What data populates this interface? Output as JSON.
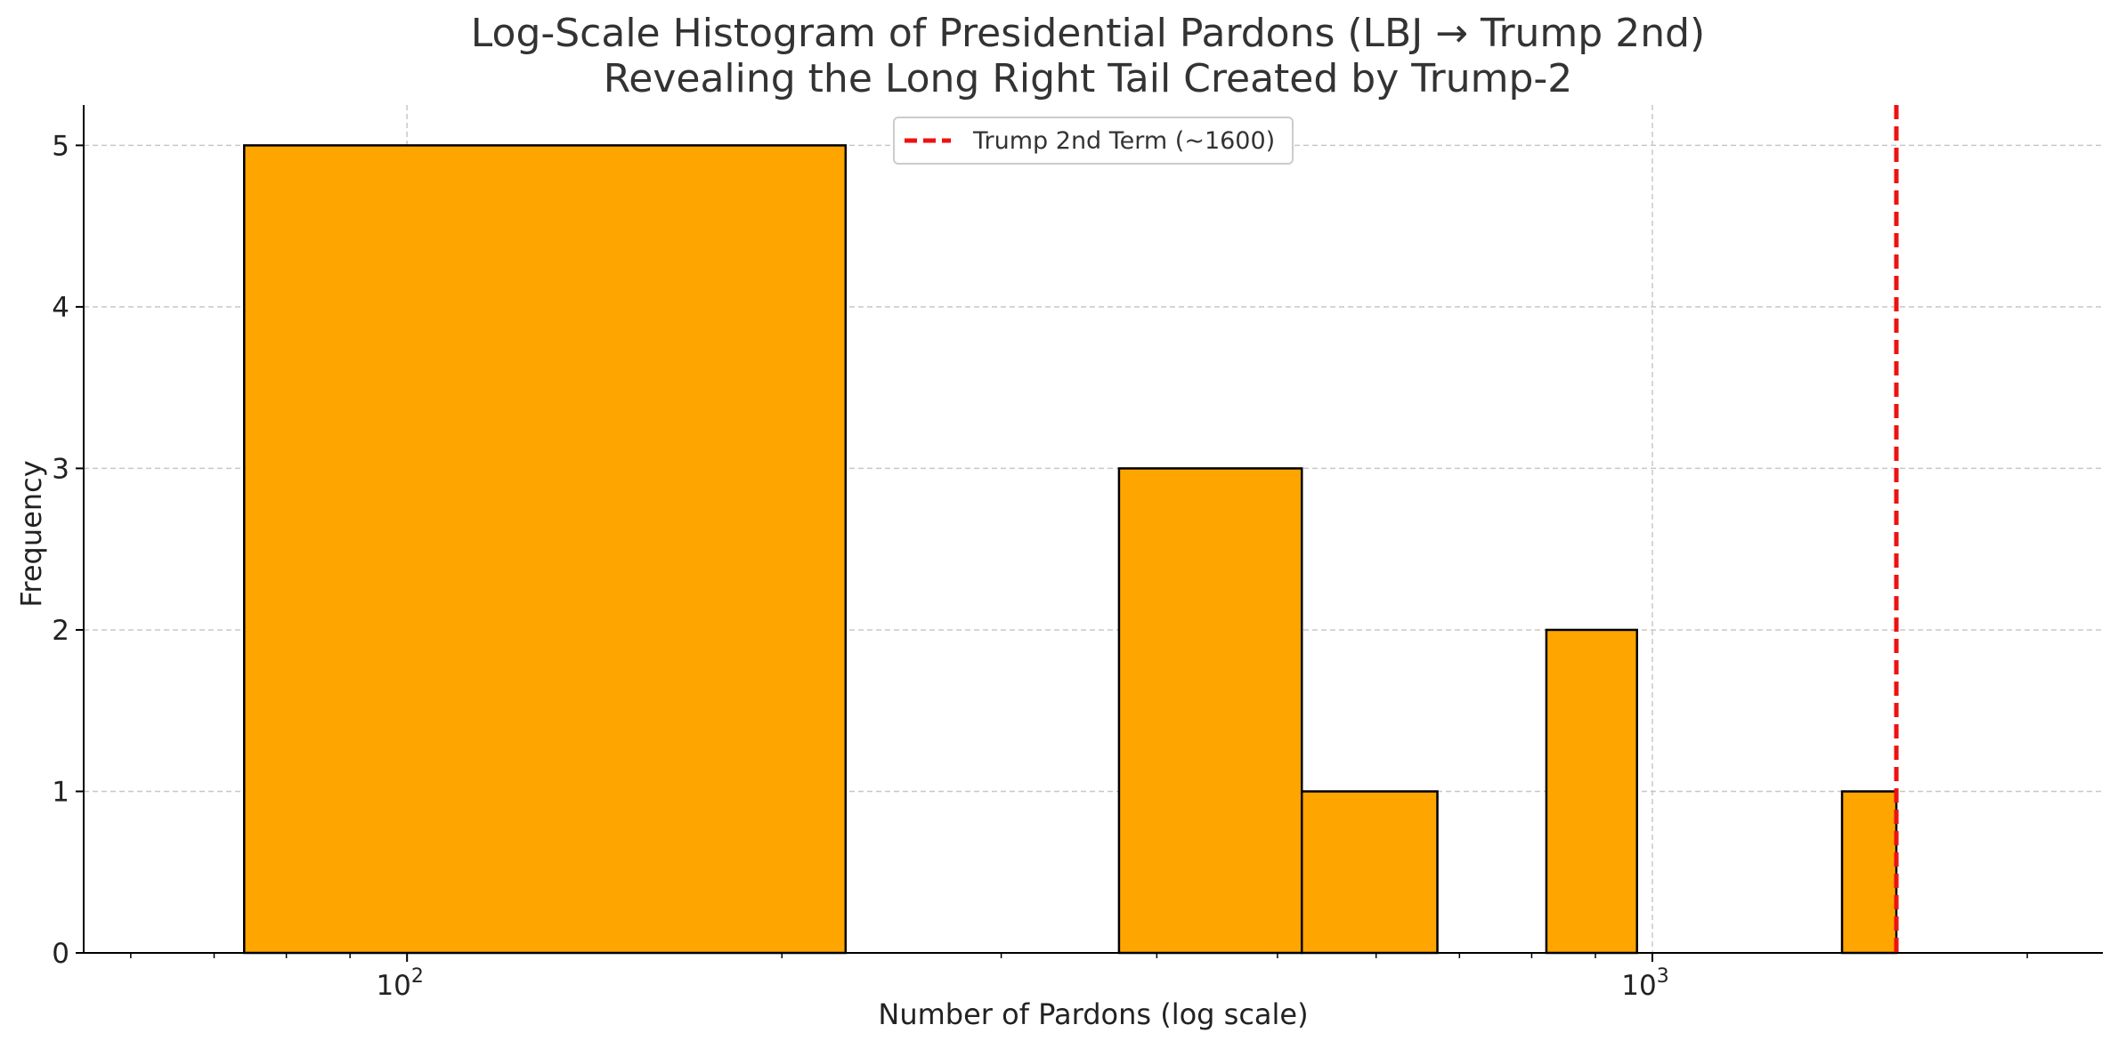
{
  "chart_data": {
    "type": "bar",
    "title_line1": "Log-Scale Histogram of Presidential Pardons (LBJ → Trump 2nd)",
    "title_line2": "Revealing the Long Right Tail Created by Trump-2",
    "xlabel": "Number of Pardons (log scale)",
    "ylabel": "Frequency",
    "x_scale": "log",
    "xlim": [
      55,
      2300
    ],
    "ylim": [
      0,
      5.25
    ],
    "yticks": [
      0,
      1,
      2,
      3,
      4,
      5
    ],
    "xticks": [
      {
        "value": 100,
        "base": "10",
        "exp": "2"
      },
      {
        "value": 1000,
        "base": "10",
        "exp": "3"
      }
    ],
    "bins": [
      {
        "start": 74,
        "end": 225,
        "count": 5
      },
      {
        "start": 373,
        "end": 523,
        "count": 3
      },
      {
        "start": 523,
        "end": 672,
        "count": 1
      },
      {
        "start": 822,
        "end": 972,
        "count": 2
      },
      {
        "start": 1420,
        "end": 1570,
        "count": 1
      }
    ],
    "bar_color": "#FFA500",
    "bar_edge_color": "#000000",
    "reference_line": {
      "x": 1570,
      "color": "#EE1111",
      "style": "dashed"
    },
    "legend": {
      "label": "Trump 2nd Term (~1600)",
      "position": "upper center"
    },
    "grid": true
  }
}
